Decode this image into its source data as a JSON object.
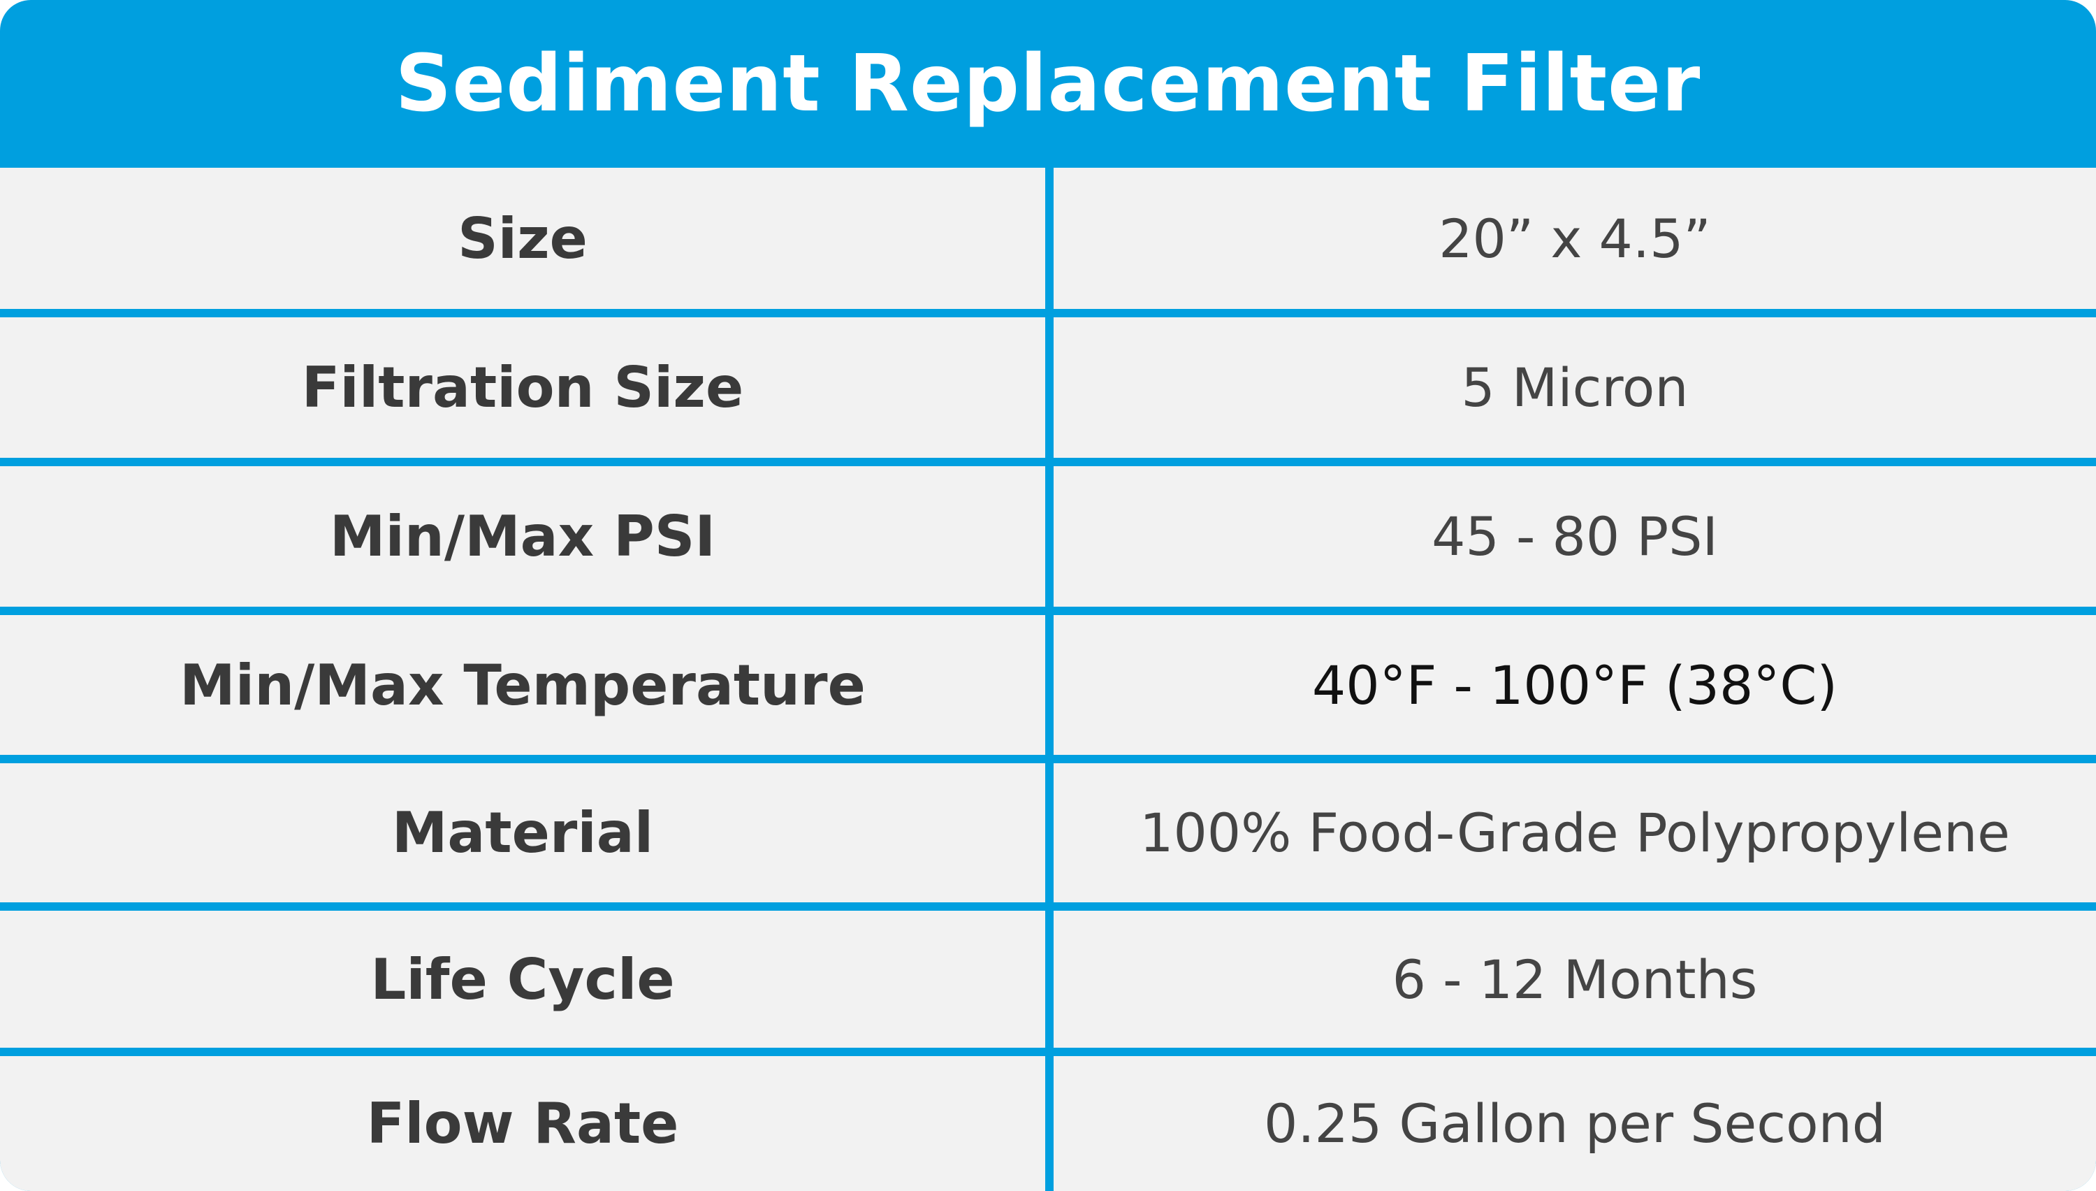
{
  "header": {
    "title": "Sediment Replacement Filter"
  },
  "rows": [
    {
      "label": "Size",
      "value": "20” x 4.5”"
    },
    {
      "label": "Filtration Size",
      "value": "5 Micron"
    },
    {
      "label": "Min/Max PSI",
      "value": "45 - 80 PSI"
    },
    {
      "label": "Min/Max Temperature",
      "value": "40°F - 100°F (38°C)"
    },
    {
      "label": "Material",
      "value": "100% Food-Grade Polypropylene"
    },
    {
      "label": "Life Cycle",
      "value": "6 - 12 Months"
    },
    {
      "label": "Flow Rate",
      "value": "0.25 Gallon per Second"
    }
  ],
  "colors": {
    "accent": "#009fdf",
    "cell_background": "#f2f2f2",
    "label_text": "#3a3a3a",
    "value_text": "#444444"
  }
}
